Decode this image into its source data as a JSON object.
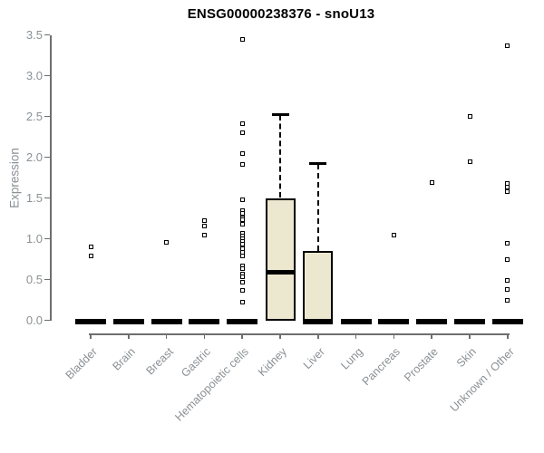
{
  "chart_data": {
    "type": "boxplot",
    "title": "ENSG00000238376 - snoU13",
    "ylabel": "Expression",
    "xlabel": "",
    "ylim": [
      0,
      3.5
    ],
    "ytick_labels": [
      "0.0",
      "0.5",
      "1.0",
      "1.5",
      "2.0",
      "2.5",
      "3.0",
      "3.5"
    ],
    "grid": false,
    "legend": null,
    "marker": "open-square",
    "whisker_style": "dashed",
    "colors": {
      "box_fill": "#ece7cf",
      "box_border": "#000000",
      "median": "#000000",
      "axis_line": "#6e6e6e",
      "axis_text": "#8b9094",
      "title_text": "#000000",
      "background": "#ffffff"
    },
    "categories": [
      "Bladder",
      "Brain",
      "Breast",
      "Gastric",
      "Hematopoietic cells",
      "Kidney",
      "Liver",
      "Lung",
      "Pancreas",
      "Prostate",
      "Skin",
      "Unknown / Other"
    ],
    "series": [
      {
        "category": "Bladder",
        "median": 0,
        "q1": 0,
        "q3": 0,
        "whisker_low": 0,
        "whisker_high": 0,
        "outliers": [
          0.9,
          0.79
        ]
      },
      {
        "category": "Brain",
        "median": 0,
        "q1": 0,
        "q3": 0,
        "whisker_low": 0,
        "whisker_high": 0,
        "outliers": []
      },
      {
        "category": "Breast",
        "median": 0,
        "q1": 0,
        "q3": 0,
        "whisker_low": 0,
        "whisker_high": 0,
        "outliers": [
          0.96
        ]
      },
      {
        "category": "Gastric",
        "median": 0,
        "q1": 0,
        "q3": 0,
        "whisker_low": 0,
        "whisker_high": 0,
        "outliers": [
          1.22,
          1.16,
          1.04
        ]
      },
      {
        "category": "Hematopoietic cells",
        "median": 0,
        "q1": 0,
        "q3": 0,
        "whisker_low": 0,
        "whisker_high": 0,
        "outliers": [
          3.44,
          2.41,
          2.3,
          2.04,
          1.91,
          1.48,
          1.34,
          1.31,
          1.26,
          1.23,
          1.18,
          1.07,
          1.03,
          1.0,
          0.97,
          0.93,
          0.88,
          0.83,
          0.79,
          0.67,
          0.63,
          0.57,
          0.53,
          0.47,
          0.37,
          0.22
        ]
      },
      {
        "category": "Kidney",
        "median": 0.6,
        "q1": 0,
        "q3": 1.5,
        "whisker_low": 0,
        "whisker_high": 2.52,
        "outliers": []
      },
      {
        "category": "Liver",
        "median": 0,
        "q1": 0,
        "q3": 0.85,
        "whisker_low": 0,
        "whisker_high": 1.92,
        "outliers": []
      },
      {
        "category": "Lung",
        "median": 0,
        "q1": 0,
        "q3": 0,
        "whisker_low": 0,
        "whisker_high": 0,
        "outliers": []
      },
      {
        "category": "Pancreas",
        "median": 0,
        "q1": 0,
        "q3": 0,
        "whisker_low": 0,
        "whisker_high": 0,
        "outliers": [
          1.05
        ]
      },
      {
        "category": "Prostate",
        "median": 0,
        "q1": 0,
        "q3": 0,
        "whisker_low": 0,
        "whisker_high": 0,
        "outliers": [
          1.69
        ]
      },
      {
        "category": "Skin",
        "median": 0,
        "q1": 0,
        "q3": 0,
        "whisker_low": 0,
        "whisker_high": 0,
        "outliers": [
          2.5,
          1.94
        ]
      },
      {
        "category": "Unknown / Other",
        "median": 0,
        "q1": 0,
        "q3": 0,
        "whisker_low": 0,
        "whisker_high": 0,
        "outliers": [
          3.37,
          1.68,
          1.63,
          1.58,
          0.94,
          0.74,
          0.49,
          0.38,
          0.24
        ]
      }
    ]
  }
}
